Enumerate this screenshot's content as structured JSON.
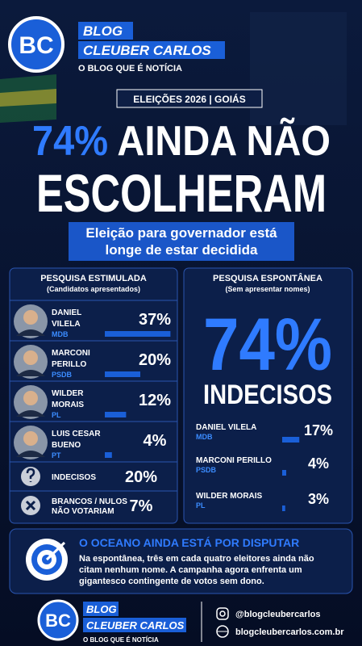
{
  "header": {
    "logo": "BC",
    "blog": "BLOG",
    "name": "CLEUBER CARLOS",
    "tagline": "O BLOG QUE É NOTÍCIA"
  },
  "banner": "ELEIÇÕES 2026 | GOIÁS",
  "headline": {
    "highlight": "74%",
    "line1": "AINDA NÃO",
    "line2": "ESCOLHERAM"
  },
  "subtitle": [
    "Eleição para governador está",
    "longe de estar decidida"
  ],
  "stimulated": {
    "title": "PESQUISA ESTIMULADA",
    "subtitle": "(Candidatos apresentados)",
    "rows": [
      {
        "name": [
          "DANIEL",
          "VILELA"
        ],
        "party": "MDB",
        "value": 37,
        "value_label": "37%"
      },
      {
        "name": [
          "MARCONI",
          "PERILLO"
        ],
        "party": "PSDB",
        "value": 20,
        "value_label": "20%"
      },
      {
        "name": [
          "WILDER",
          "MORAIS"
        ],
        "party": "PL",
        "value": 12,
        "value_label": "12%"
      },
      {
        "name": [
          "LUIS CESAR",
          "BUENO"
        ],
        "party": "PT",
        "value": 4,
        "value_label": "4%"
      }
    ],
    "others": [
      {
        "name": [
          "INDECISOS"
        ],
        "value_label": "20%"
      },
      {
        "name": [
          "BRANCOS / NULOS",
          "NÃO VOTARIAM"
        ],
        "value_label": "7%"
      }
    ]
  },
  "spontaneous": {
    "title": "PESQUISA ESPONTÂNEA",
    "subtitle": "(Sem apresentar nomes)",
    "big": "74%",
    "big_label": "INDECISOS",
    "rows": [
      {
        "name": "DANIEL VILELA",
        "party": "MDB",
        "value": 17,
        "value_label": "17%"
      },
      {
        "name": "MARCONI PERILLO",
        "party": "PSDB",
        "value": 4,
        "value_label": "4%"
      },
      {
        "name": "WILDER MORAIS",
        "party": "PL",
        "value": 3,
        "value_label": "3%"
      }
    ]
  },
  "callout": {
    "title": "O OCEANO AINDA ESTÁ POR DISPUTAR",
    "lines": [
      "Na espontânea, três em cada quatro eleitores ainda não",
      "citam nenhum nome. A campanha agora enfrenta um",
      "gigantesco contingente de votos sem dono."
    ]
  },
  "footer": {
    "logo": "BC",
    "blog": "BLOG",
    "name": "CLEUBER CARLOS",
    "tagline": "O BLOG QUE É NOTÍCIA",
    "instagram": "@blogcleubercarlos",
    "website": "blogcleubercarlos.com.br"
  }
}
